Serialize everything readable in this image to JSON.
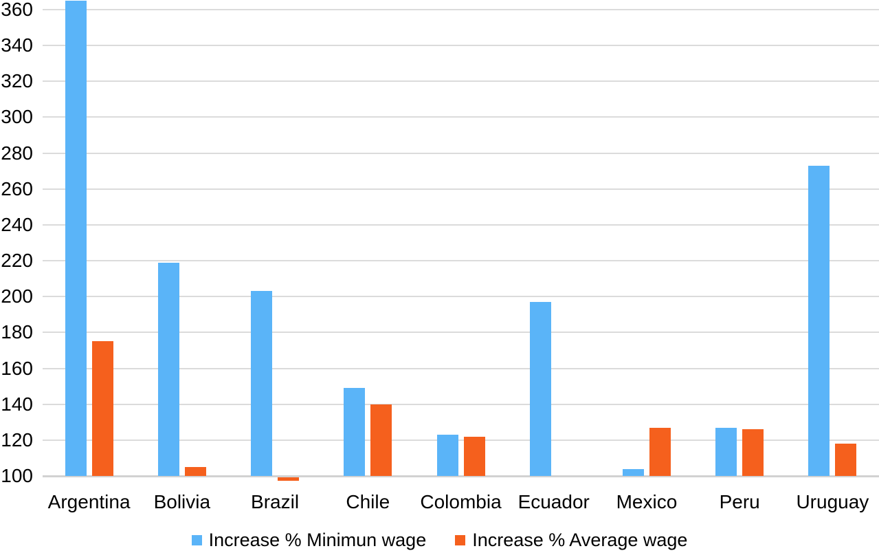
{
  "chart_data": {
    "type": "bar",
    "title": "",
    "xlabel": "",
    "ylabel": "",
    "categories": [
      "Argentina",
      "Bolivia",
      "Brazil",
      "Chile",
      "Colombia",
      "Ecuador",
      "Mexico",
      "Peru",
      "Uruguay"
    ],
    "series": [
      {
        "name": "Increase % Minimun wage",
        "key": "minimum-wage",
        "color": "#5ab4f8",
        "values": [
          365,
          219,
          203,
          149,
          123,
          197,
          104,
          127,
          273
        ]
      },
      {
        "name": "Increase % Average wage",
        "key": "average-wage",
        "color": "#f5601d",
        "values": [
          175,
          105,
          98,
          140,
          122,
          null,
          127,
          126,
          118
        ]
      }
    ],
    "ylim": [
      100,
      365
    ],
    "yticks": [
      100,
      120,
      140,
      160,
      180,
      200,
      220,
      240,
      260,
      280,
      300,
      320,
      340,
      360
    ],
    "grid": true,
    "legend_position": "bottom"
  },
  "colors": {
    "gridline": "#dbdbdb",
    "baseline": "#d2d2d2",
    "text": "#000000",
    "background": "#ffffff"
  }
}
